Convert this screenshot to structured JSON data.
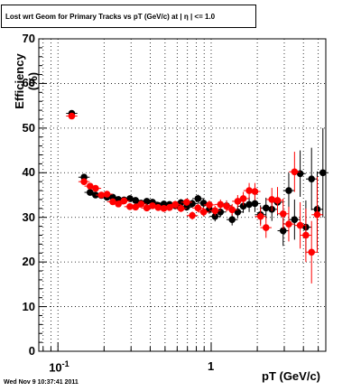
{
  "title": "Lost wrt Geom for Primary Tracks vs pT (GeV/c) at |  η | <= 1.0",
  "timestamp": "Wed Nov  9 10:37:41 2011",
  "chart_data": {
    "type": "scatter",
    "title": "Lost wrt Geom for Primary Tracks vs pT (GeV/c) at |  η | <= 1.0",
    "xlabel": "pT (GeV/c)",
    "ylabel": "Efficiency (%)",
    "xscale": "log",
    "xlim": [
      0.075,
      5.6
    ],
    "ylim": [
      0,
      70
    ],
    "grid": true,
    "x_ticks": [
      {
        "value": 0.1,
        "label": "10",
        "exp": "-1"
      },
      {
        "value": 1,
        "label": "1",
        "exp": ""
      }
    ],
    "y_ticks": [
      0,
      10,
      20,
      30,
      40,
      50,
      60,
      70
    ],
    "y_tick_labels": [
      "0",
      "10",
      "20",
      "30",
      "40",
      "50",
      "60",
      "70"
    ],
    "series": [
      {
        "color": "#000000",
        "points": [
          [
            0.123,
            53.3,
            0.7
          ],
          [
            0.148,
            39.0,
            0.7
          ],
          [
            0.162,
            35.6,
            0.6
          ],
          [
            0.176,
            35.0,
            0.6
          ],
          [
            0.192,
            34.9,
            0.6
          ],
          [
            0.209,
            34.5,
            0.6
          ],
          [
            0.228,
            34.5,
            0.6
          ],
          [
            0.248,
            34.0,
            0.6
          ],
          [
            0.27,
            33.9,
            0.6
          ],
          [
            0.295,
            34.2,
            0.6
          ],
          [
            0.321,
            33.8,
            0.6
          ],
          [
            0.349,
            33.2,
            0.6
          ],
          [
            0.38,
            33.6,
            0.7
          ],
          [
            0.414,
            33.4,
            0.7
          ],
          [
            0.451,
            32.7,
            0.7
          ],
          [
            0.491,
            33.0,
            0.7
          ],
          [
            0.535,
            32.9,
            0.7
          ],
          [
            0.583,
            32.6,
            0.8
          ],
          [
            0.635,
            33.3,
            0.8
          ],
          [
            0.692,
            32.3,
            0.8
          ],
          [
            0.753,
            33.1,
            0.9
          ],
          [
            0.82,
            34.2,
            0.9
          ],
          [
            0.893,
            33.2,
            1.0
          ],
          [
            0.973,
            31.8,
            1.0
          ],
          [
            1.06,
            30.2,
            1.1
          ],
          [
            1.15,
            31.2,
            1.1
          ],
          [
            1.26,
            32.6,
            1.2
          ],
          [
            1.37,
            29.5,
            1.3
          ],
          [
            1.49,
            31.2,
            1.4
          ],
          [
            1.62,
            32.5,
            1.5
          ],
          [
            1.77,
            32.9,
            1.7
          ],
          [
            1.93,
            33.1,
            1.9
          ],
          [
            2.1,
            30.6,
            2.1
          ],
          [
            2.28,
            32.1,
            2.3
          ],
          [
            2.49,
            31.8,
            2.6
          ],
          [
            2.71,
            33.4,
            3.0
          ],
          [
            2.95,
            27.0,
            3.4
          ],
          [
            3.21,
            36.0,
            3.9
          ],
          [
            3.5,
            29.5,
            4.5
          ],
          [
            3.81,
            39.8,
            5.2
          ],
          [
            4.15,
            27.8,
            6.0
          ],
          [
            4.52,
            38.6,
            7.0
          ],
          [
            4.92,
            31.8,
            8.5
          ],
          [
            5.36,
            40.0,
            10.0
          ]
        ]
      },
      {
        "color": "#ff0000",
        "points": [
          [
            0.123,
            52.7,
            0.7
          ],
          [
            0.148,
            38.0,
            0.7
          ],
          [
            0.162,
            37.0,
            0.6
          ],
          [
            0.176,
            36.5,
            0.6
          ],
          [
            0.192,
            35.0,
            0.6
          ],
          [
            0.209,
            35.2,
            0.6
          ],
          [
            0.228,
            33.5,
            0.6
          ],
          [
            0.248,
            33.0,
            0.6
          ],
          [
            0.27,
            33.7,
            0.6
          ],
          [
            0.295,
            32.4,
            0.6
          ],
          [
            0.321,
            32.3,
            0.6
          ],
          [
            0.349,
            33.0,
            0.6
          ],
          [
            0.38,
            32.1,
            0.7
          ],
          [
            0.414,
            32.6,
            0.7
          ],
          [
            0.451,
            32.2,
            0.7
          ],
          [
            0.491,
            32.0,
            0.7
          ],
          [
            0.535,
            32.2,
            0.7
          ],
          [
            0.583,
            32.9,
            0.8
          ],
          [
            0.635,
            32.0,
            0.8
          ],
          [
            0.692,
            33.4,
            0.8
          ],
          [
            0.753,
            30.4,
            0.9
          ],
          [
            0.82,
            32.1,
            0.9
          ],
          [
            0.893,
            31.2,
            1.0
          ],
          [
            0.973,
            32.8,
            1.0
          ],
          [
            1.06,
            31.5,
            1.1
          ],
          [
            1.15,
            32.9,
            1.1
          ],
          [
            1.26,
            32.5,
            1.2
          ],
          [
            1.37,
            31.7,
            1.3
          ],
          [
            1.49,
            33.6,
            1.4
          ],
          [
            1.62,
            34.2,
            1.5
          ],
          [
            1.77,
            36.0,
            1.7
          ],
          [
            1.93,
            35.8,
            1.9
          ],
          [
            2.1,
            30.2,
            2.1
          ],
          [
            2.28,
            27.7,
            2.3
          ],
          [
            2.49,
            34.0,
            2.6
          ],
          [
            2.71,
            33.8,
            3.0
          ],
          [
            2.95,
            30.8,
            3.4
          ],
          [
            3.21,
            28.5,
            3.9
          ],
          [
            3.5,
            40.2,
            4.5
          ],
          [
            3.81,
            28.2,
            5.2
          ],
          [
            4.15,
            26.0,
            6.0
          ],
          [
            4.52,
            22.2,
            7.0
          ],
          [
            4.92,
            30.6,
            8.5
          ]
        ]
      }
    ]
  }
}
